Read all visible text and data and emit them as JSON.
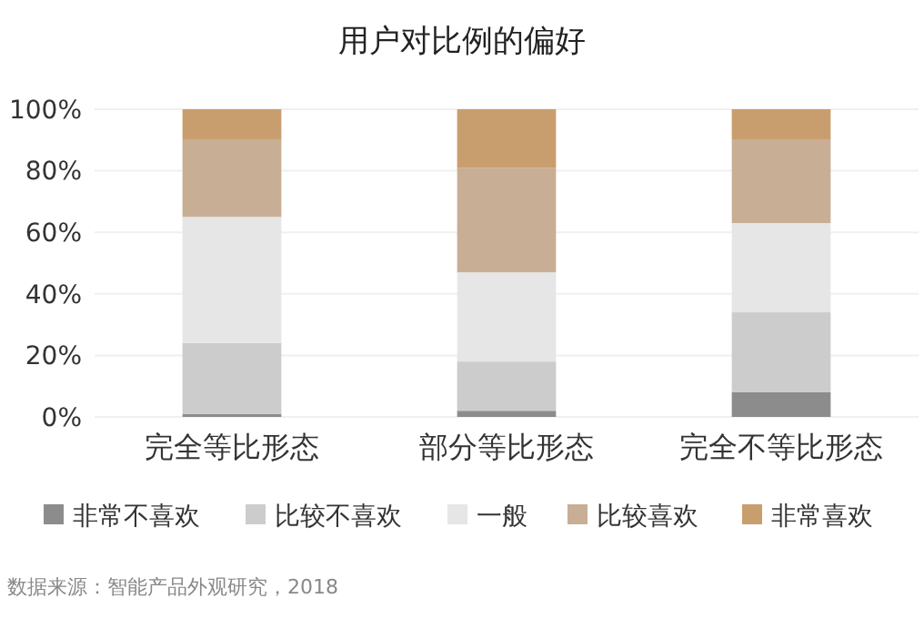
{
  "chart_data": {
    "type": "bar",
    "title": "用户对比例的偏好",
    "categories": [
      "完全等比形态",
      "部分等比形态",
      "完全不等比形态"
    ],
    "stacked": true,
    "series": [
      {
        "name": "非常不喜欢",
        "color": "#8c8c8c",
        "values": [
          1,
          2,
          8
        ]
      },
      {
        "name": "比较不喜欢",
        "color": "#cccccc",
        "values": [
          23,
          16,
          26
        ]
      },
      {
        "name": "一般",
        "color": "#e6e6e6",
        "values": [
          41,
          29,
          29
        ]
      },
      {
        "name": "比较喜欢",
        "color": "#c8ae95",
        "values": [
          25,
          34,
          27
        ]
      },
      {
        "name": "非常喜欢",
        "color": "#c99e6e",
        "values": [
          10,
          19,
          10
        ]
      }
    ],
    "ylim": [
      0,
      100
    ],
    "yticks": [
      {
        "value": 0,
        "label": "0%"
      },
      {
        "value": 20,
        "label": "20%"
      },
      {
        "value": 40,
        "label": "40%"
      },
      {
        "value": 60,
        "label": "60%"
      },
      {
        "value": 80,
        "label": "80%"
      },
      {
        "value": 100,
        "label": "100%"
      }
    ],
    "grid": "y",
    "legend": "bottom",
    "annotations": [
      "数据来源：智能产品外观研究，2018"
    ]
  }
}
